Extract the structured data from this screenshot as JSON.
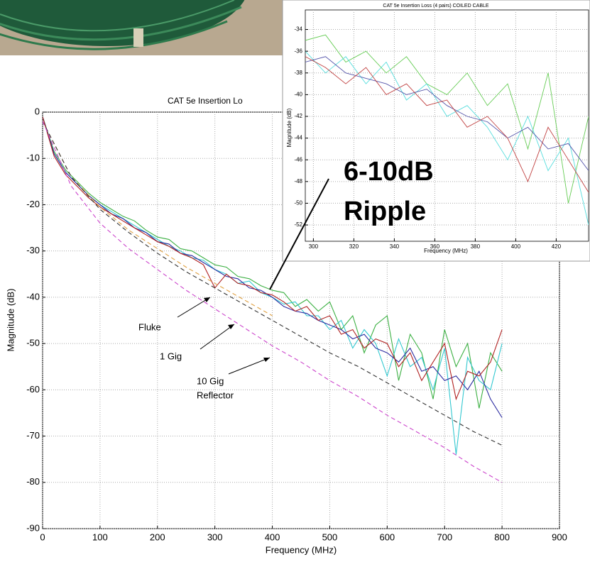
{
  "chart_data": [
    {
      "type": "line",
      "title": "CAT 5e Insertion Lo",
      "x_label": "Frequency (MHz)",
      "y_label": "Magnitude (dB)",
      "xlim": [
        0,
        900
      ],
      "xticks": [
        0,
        100,
        200,
        300,
        400,
        500,
        600,
        700,
        800,
        900
      ],
      "ylim": [
        -90,
        0
      ],
      "yticks": [
        0,
        -10,
        -20,
        -30,
        -40,
        -50,
        -60,
        -70,
        -80,
        -90
      ],
      "grid": true,
      "annotations": [
        "Fluke",
        "1 Gig",
        "10 Gig",
        "Reflector",
        "6-10dB",
        "Ripple"
      ],
      "series": [
        {
          "color": "#3cb043",
          "linestyle": "solid",
          "x": [
            0,
            20,
            40,
            60,
            80,
            100,
            120,
            140,
            160,
            180,
            200,
            220,
            240,
            260,
            280,
            300,
            320,
            340,
            360,
            380,
            400,
            420,
            440,
            460,
            480,
            500,
            520,
            540,
            560,
            580,
            600,
            620,
            640,
            660,
            680,
            700,
            720,
            740,
            760,
            780,
            800
          ],
          "values": [
            -1,
            -8.5,
            -12.5,
            -15,
            -17.5,
            -19.5,
            -21,
            -22.5,
            -23.5,
            -25.5,
            -27,
            -27.5,
            -29.5,
            -30,
            -31.5,
            -33,
            -33.5,
            -35.5,
            -36,
            -37.5,
            -38.5,
            -39,
            -42,
            -40.5,
            -43,
            -41,
            -47,
            -44,
            -52,
            -46,
            -44,
            -58,
            -48,
            -52,
            -62,
            -47,
            -55,
            -50,
            -64,
            -52,
            -56
          ]
        },
        {
          "color": "#33c8d0",
          "linestyle": "solid",
          "x": [
            0,
            20,
            40,
            60,
            80,
            100,
            120,
            140,
            160,
            180,
            200,
            220,
            240,
            260,
            280,
            300,
            320,
            340,
            360,
            380,
            400,
            420,
            440,
            460,
            480,
            500,
            520,
            540,
            560,
            580,
            600,
            620,
            640,
            660,
            680,
            700,
            720,
            740,
            760,
            780,
            800
          ],
          "values": [
            -1,
            -9,
            -13,
            -15.5,
            -18,
            -20,
            -21.5,
            -23,
            -24.5,
            -26,
            -27.5,
            -29,
            -30,
            -31.5,
            -32,
            -34,
            -35,
            -37,
            -36.5,
            -39,
            -40,
            -41.5,
            -41,
            -44,
            -44,
            -47,
            -45,
            -51,
            -47,
            -50,
            -57,
            -49,
            -55,
            -53,
            -60,
            -51,
            -74,
            -53,
            -58,
            -60,
            -50
          ]
        },
        {
          "color": "#2a2aa0",
          "linestyle": "solid",
          "x": [
            0,
            20,
            40,
            60,
            80,
            100,
            120,
            140,
            160,
            180,
            200,
            220,
            240,
            260,
            280,
            300,
            320,
            340,
            360,
            380,
            400,
            420,
            440,
            460,
            480,
            500,
            520,
            540,
            560,
            580,
            600,
            620,
            640,
            660,
            680,
            700,
            720,
            740,
            760,
            780,
            800
          ],
          "values": [
            -1,
            -9,
            -13,
            -15.5,
            -18,
            -20,
            -22,
            -23,
            -25,
            -26,
            -28,
            -28.5,
            -30.5,
            -31,
            -32.5,
            -34,
            -35.5,
            -36,
            -38,
            -38.5,
            -40,
            -42,
            -43,
            -43.5,
            -45,
            -46,
            -47,
            -49,
            -48,
            -51,
            -52,
            -54,
            -51,
            -56,
            -55,
            -58,
            -57,
            -60,
            -56,
            -62,
            -66
          ]
        },
        {
          "color": "#b02020",
          "linestyle": "solid",
          "x": [
            0,
            20,
            40,
            60,
            80,
            100,
            120,
            140,
            160,
            180,
            200,
            220,
            240,
            260,
            280,
            300,
            320,
            340,
            360,
            380,
            400,
            420,
            440,
            460,
            480,
            500,
            520,
            540,
            560,
            580,
            600,
            620,
            640,
            660,
            680,
            700,
            720,
            740,
            760,
            780,
            800
          ],
          "values": [
            -1,
            -9.5,
            -13.5,
            -16,
            -18.5,
            -20.5,
            -22,
            -23.5,
            -25,
            -26.5,
            -28,
            -29,
            -30.5,
            -31.5,
            -33,
            -38,
            -35,
            -37,
            -37.5,
            -39,
            -39.5,
            -41,
            -43,
            -42,
            -45,
            -44,
            -48,
            -47,
            -51,
            -49,
            -50,
            -55,
            -52,
            -58,
            -54,
            -50,
            -62,
            -56,
            -57,
            -54,
            -47
          ]
        },
        {
          "color": "#e0a040",
          "linestyle": "dashed",
          "x": [
            0,
            50,
            100,
            150,
            200,
            250,
            300,
            350,
            400
          ],
          "values": [
            -2,
            -14,
            -20.5,
            -25.5,
            -29.5,
            -33.5,
            -37,
            -40.5,
            -44
          ]
        },
        {
          "color": "#333333",
          "linestyle": "dashed",
          "x": [
            0,
            50,
            100,
            150,
            200,
            250,
            300,
            350,
            400,
            450,
            500,
            550,
            600,
            650,
            700,
            750,
            800
          ],
          "values": [
            -2,
            -14,
            -21,
            -26,
            -30.5,
            -34.5,
            -38,
            -41.5,
            -45,
            -48.5,
            -52,
            -55,
            -58.5,
            -62,
            -65.5,
            -69,
            -72
          ]
        },
        {
          "color": "#cc44cc",
          "linestyle": "dashed",
          "x": [
            0,
            50,
            100,
            150,
            200,
            250,
            300,
            350,
            400,
            450,
            500,
            550,
            600,
            650,
            700,
            750,
            800
          ],
          "values": [
            -2,
            -16,
            -24,
            -29.5,
            -34,
            -38.5,
            -42.5,
            -46.5,
            -50.5,
            -54,
            -58,
            -61.5,
            -65.5,
            -69,
            -72.5,
            -76.5,
            -80
          ]
        }
      ]
    },
    {
      "type": "line",
      "title": "CAT 5e Insertion Loss (4 pairs) COILED CABLE",
      "x_label": "Frequency (MHz)",
      "y_label": "Magnitude (dB)",
      "xlim": [
        296,
        436
      ],
      "xticks": [
        300,
        320,
        340,
        360,
        380,
        400,
        420
      ],
      "ylim": [
        -53.5,
        -32.2
      ],
      "yticks": [
        -34,
        -36,
        -38,
        -40,
        -42,
        -44,
        -46,
        -48,
        -50,
        -52
      ],
      "grid": true,
      "series": [
        {
          "color": "#66cc55",
          "linestyle": "solid",
          "x": [
            296,
            306,
            316,
            326,
            336,
            346,
            356,
            366,
            376,
            386,
            396,
            406,
            416,
            426,
            436
          ],
          "values": [
            -35,
            -34.5,
            -37,
            -36,
            -38,
            -36.5,
            -39,
            -40,
            -38,
            -41,
            -39,
            -45,
            -38,
            -50,
            -42
          ]
        },
        {
          "color": "#55dddd",
          "linestyle": "solid",
          "x": [
            296,
            306,
            316,
            326,
            336,
            346,
            356,
            366,
            376,
            386,
            396,
            406,
            416,
            426,
            436
          ],
          "values": [
            -36,
            -38,
            -36.5,
            -39,
            -37,
            -40.5,
            -39,
            -42,
            -41,
            -43,
            -46,
            -42,
            -47,
            -44,
            -52
          ]
        },
        {
          "color": "#5555aa",
          "linestyle": "solid",
          "x": [
            296,
            306,
            316,
            326,
            336,
            346,
            356,
            366,
            376,
            386,
            396,
            406,
            416,
            426,
            436
          ],
          "values": [
            -37,
            -36.5,
            -38,
            -38.5,
            -39,
            -40,
            -39.5,
            -41,
            -42,
            -42.5,
            -44,
            -43,
            -45,
            -44.5,
            -47
          ]
        },
        {
          "color": "#c04040",
          "linestyle": "solid",
          "x": [
            296,
            306,
            316,
            326,
            336,
            346,
            356,
            366,
            376,
            386,
            396,
            406,
            416,
            426,
            436
          ],
          "values": [
            -36.5,
            -37.5,
            -39,
            -37.5,
            -40,
            -39,
            -41,
            -40.5,
            -43,
            -42,
            -44,
            -48,
            -43,
            -46,
            -49
          ]
        }
      ]
    }
  ]
}
